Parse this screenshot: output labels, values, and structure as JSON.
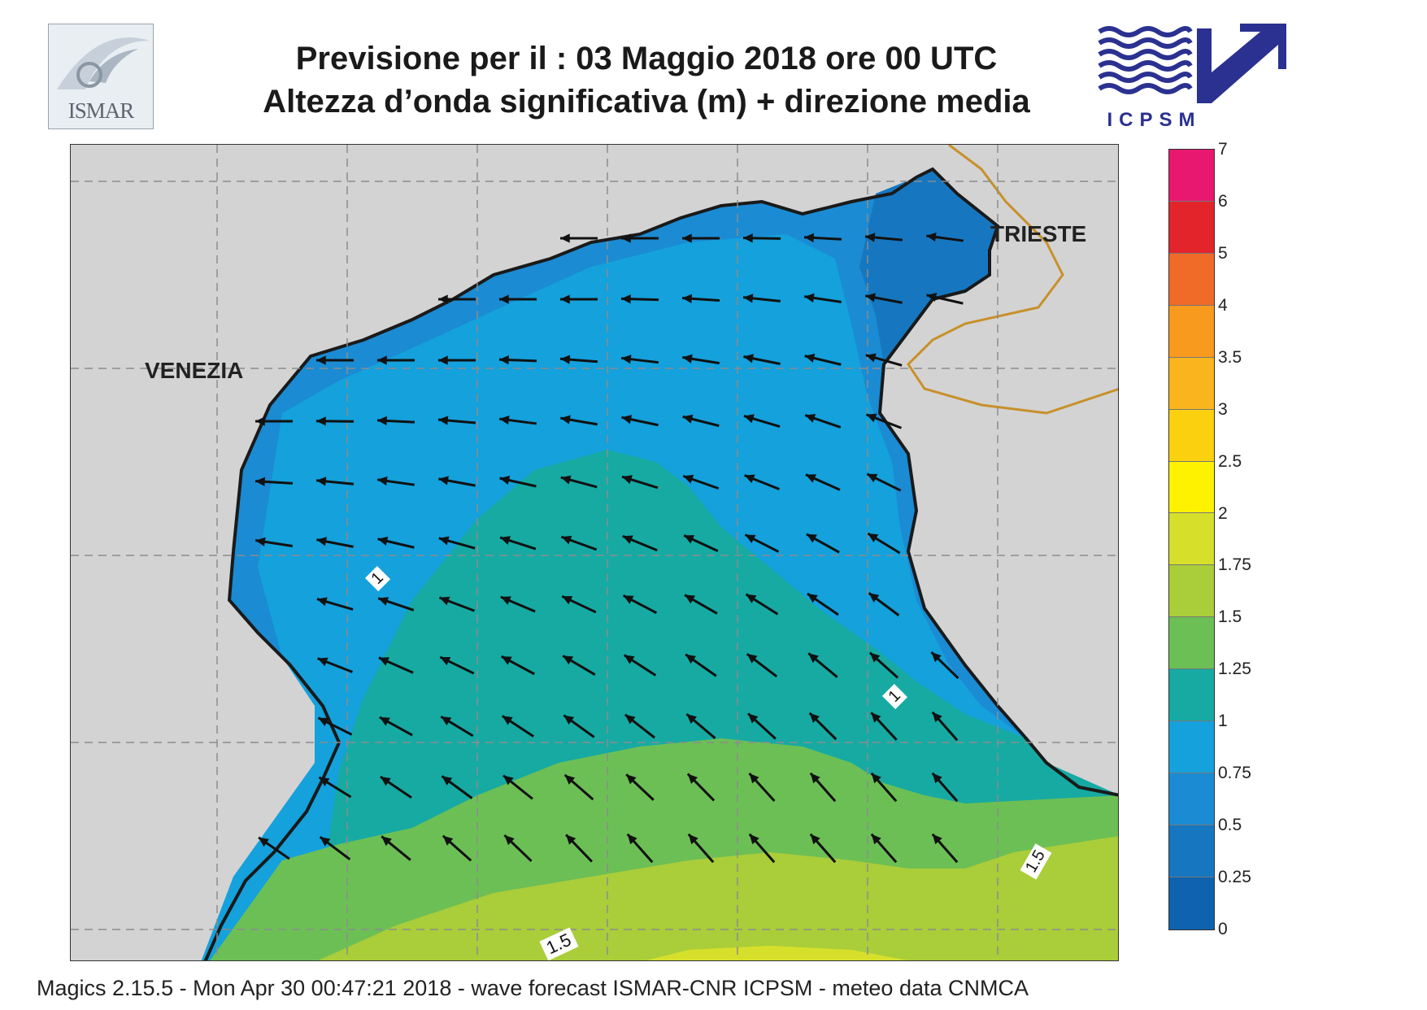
{
  "header": {
    "title_line1": "Previsione per il  :  03   Maggio  2018   ore 00 UTC",
    "title_line2": "Altezza d’onda significativa (m) + direzione media"
  },
  "logos": {
    "left": {
      "name": "ISMAR",
      "text": "ISMAR"
    },
    "right": {
      "name": "ICPSM",
      "text": "ICPSM"
    }
  },
  "map": {
    "cities": [
      {
        "label": "VENEZIA"
      },
      {
        "label": "TRIESTE"
      }
    ],
    "contour_labels": [
      "1",
      "1",
      "1.5",
      "1.5"
    ],
    "arrow_direction": "westward to north-westward"
  },
  "colorbar": {
    "ticks": [
      "7",
      "6",
      "5",
      "4",
      "3.5",
      "3",
      "2.5",
      "2",
      "1.75",
      "1.5",
      "1.25",
      "1",
      "0.75",
      "0.5",
      "0.25",
      "0"
    ],
    "colors": [
      "#e8176f",
      "#e3242b",
      "#f06a28",
      "#f79a1e",
      "#f8b51d",
      "#fbd10f",
      "#fff200",
      "#d6e02b",
      "#aacd3a",
      "#6cbf55",
      "#16aaa3",
      "#14a1dc",
      "#1b8bd3",
      "#1677c0",
      "#0f62ad"
    ]
  },
  "footer": {
    "text": "Magics 2.15.5 - Mon Apr 30 00:47:21 2018 - wave forecast  ISMAR-CNR  ICPSM - meteo data    CNMCA"
  }
}
